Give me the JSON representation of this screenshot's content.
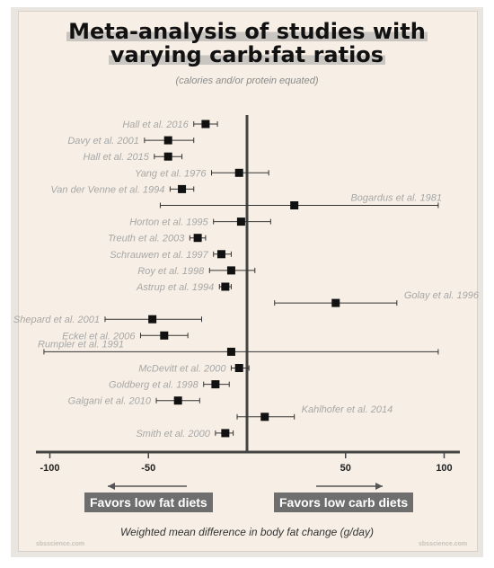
{
  "chart_data": {
    "type": "scatter",
    "title_line1": "Meta-analysis of studies with",
    "title_line2": "varying carb:fat ratios",
    "subtitle": "(calories and/or protein equated)",
    "xlabel": "Weighted mean difference in body fat change (g/day)",
    "xlim": [
      -103,
      108
    ],
    "xticks": [
      "-100",
      "-50",
      "50",
      "100"
    ],
    "left_direction_label": "Favors low fat diets",
    "right_direction_label": "Favors low carb diets",
    "watermark": "sbsscience.com",
    "studies": [
      {
        "name": "Hall et al. 2016",
        "mean": -21,
        "lo": -27,
        "hi": -15,
        "label_side": "left"
      },
      {
        "name": "Davy et al. 2001",
        "mean": -40,
        "lo": -52,
        "hi": -27,
        "label_side": "left"
      },
      {
        "name": "Hall et al. 2015",
        "mean": -40,
        "lo": -47,
        "hi": -33,
        "label_side": "left"
      },
      {
        "name": "Yang et al. 1976",
        "mean": -4,
        "lo": -18,
        "hi": 11,
        "label_side": "left"
      },
      {
        "name": "Van der Venne et al. 1994",
        "mean": -33,
        "lo": -39,
        "hi": -27,
        "label_side": "left"
      },
      {
        "name": "Bogardus et al. 1981",
        "mean": 24,
        "lo": -44,
        "hi": 97,
        "label_side": "right"
      },
      {
        "name": "Horton et al. 1995",
        "mean": -3,
        "lo": -17,
        "hi": 12,
        "label_side": "left"
      },
      {
        "name": "Treuth et al. 2003",
        "mean": -25,
        "lo": -29,
        "hi": -21,
        "label_side": "left"
      },
      {
        "name": "Schrauwen et al. 1997",
        "mean": -13,
        "lo": -17,
        "hi": -8,
        "label_side": "left"
      },
      {
        "name": "Roy et al. 1998",
        "mean": -8,
        "lo": -19,
        "hi": 4,
        "label_side": "left"
      },
      {
        "name": "Astrup et al. 1994",
        "mean": -11,
        "lo": -14,
        "hi": -8,
        "label_side": "left"
      },
      {
        "name": "Golay et al. 1996",
        "mean": 45,
        "lo": 14,
        "hi": 76,
        "label_side": "right"
      },
      {
        "name": "Shepard et al. 2001",
        "mean": -48,
        "lo": -72,
        "hi": -23,
        "label_side": "left"
      },
      {
        "name": "Eckel et al. 2006",
        "mean": -42,
        "lo": -54,
        "hi": -30,
        "label_side": "left"
      },
      {
        "name": "Rumpler et al. 1991",
        "mean": -8,
        "lo": -103,
        "hi": 97,
        "label_side": "left"
      },
      {
        "name": "McDevitt et al. 2000",
        "mean": -4,
        "lo": -8,
        "hi": 1,
        "label_side": "left"
      },
      {
        "name": "Goldberg et al. 1998",
        "mean": -16,
        "lo": -22,
        "hi": -9,
        "label_side": "left"
      },
      {
        "name": "Galgani et al. 2010",
        "mean": -35,
        "lo": -46,
        "hi": -24,
        "label_side": "left"
      },
      {
        "name": "Kahlhofer et al. 2014",
        "mean": 9,
        "lo": -5,
        "hi": 24,
        "label_side": "right"
      },
      {
        "name": "Smith et al. 2000",
        "mean": -11,
        "lo": -16,
        "hi": -7,
        "label_side": "left"
      }
    ]
  }
}
